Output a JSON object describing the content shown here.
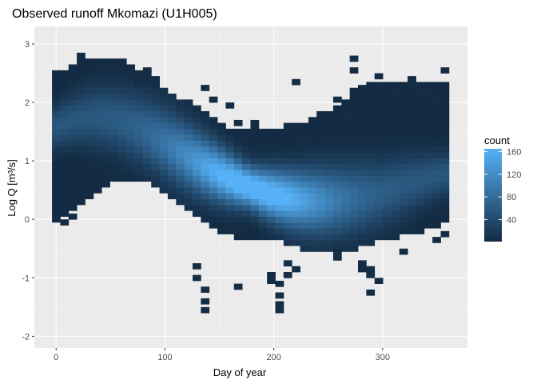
{
  "chart_data": {
    "type": "heatmap",
    "title": "Observed runoff Mkomazi (U1H005)",
    "xlabel": "Day of year",
    "ylabel": "Log Q [m³/s]",
    "xlim": [
      -20,
      378
    ],
    "ylim": [
      -2.2,
      3.3
    ],
    "x_ticks": [
      0,
      100,
      200,
      300
    ],
    "y_ticks": [
      -2,
      -1,
      0,
      1,
      2,
      3
    ],
    "x_tick_labels": [
      "0",
      "100",
      "200",
      "300"
    ],
    "y_tick_labels": [
      "-2",
      "-1",
      "0",
      "1",
      "2",
      "3"
    ],
    "grid": true,
    "bin_width_days": 7.6,
    "bin_height_logq": 0.1,
    "legend": {
      "title": "count",
      "position": "right",
      "labels": [
        "40",
        "80",
        "120",
        "160"
      ],
      "values": [
        40,
        80,
        120,
        160
      ],
      "range": [
        1,
        165
      ],
      "color_low": "#132b43",
      "color_high": "#56b1f7"
    },
    "colors": {
      "panel_background": "#ebebeb",
      "grid_major": "#ffffff",
      "grid_minor": "#f5f5f5"
    }
  }
}
